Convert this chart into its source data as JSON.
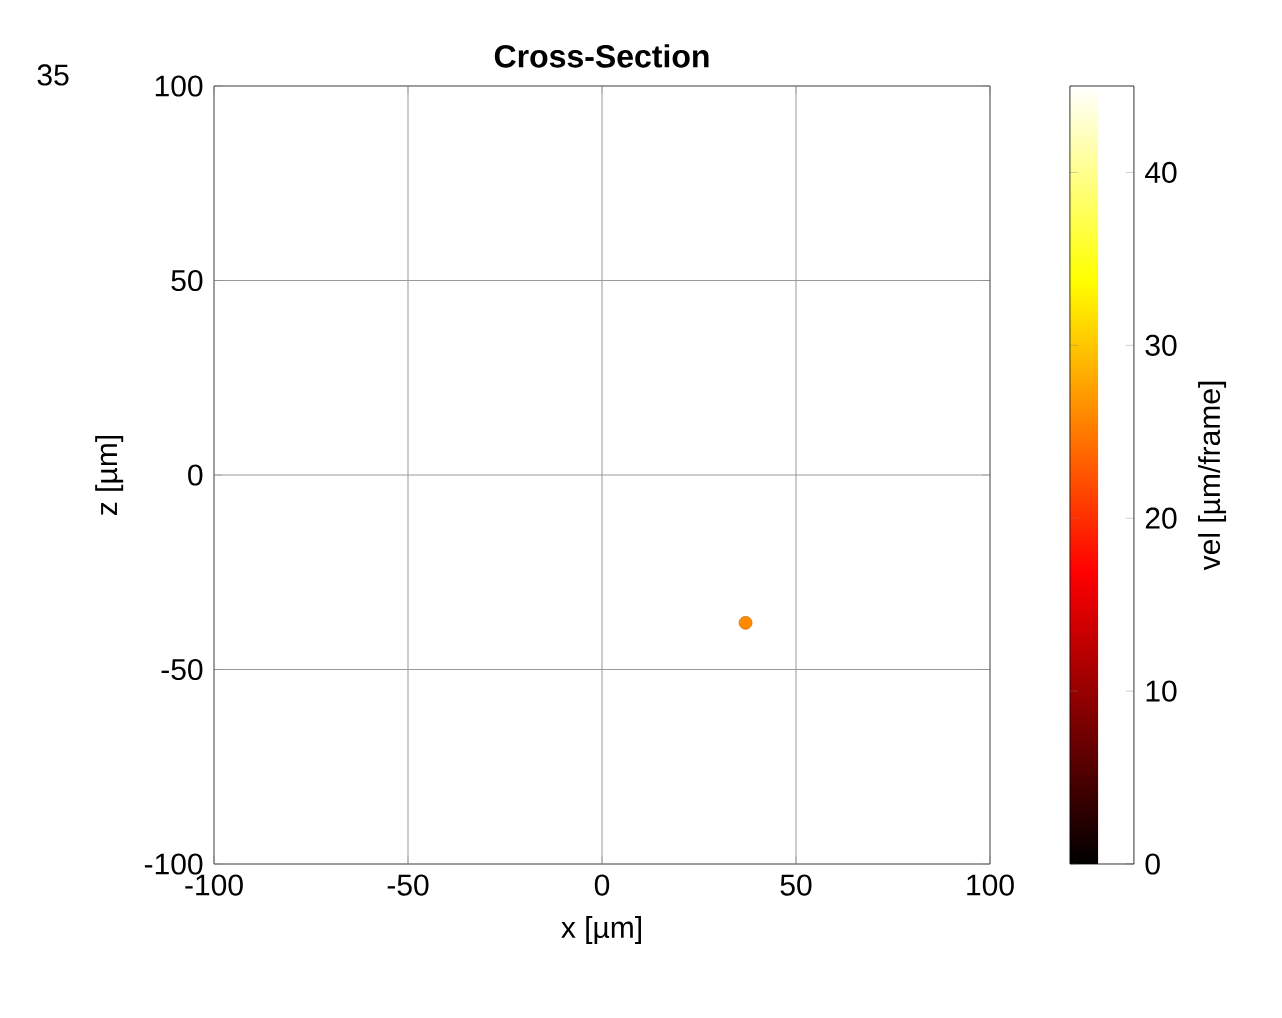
{
  "chart_data": {
    "type": "scatter",
    "title": "Cross-Section",
    "xlabel": "x [µm]",
    "ylabel": "z [µm]",
    "clabel": "vel [µm/frame]",
    "annotations": [
      "35"
    ],
    "x": [
      37
    ],
    "values": [
      -38
    ],
    "cvalues": [
      26
    ],
    "xlim": [
      -100,
      100
    ],
    "ylim": [
      -100,
      100
    ],
    "xticks": [
      -100,
      -50,
      0,
      50,
      100
    ],
    "yticks": [
      -100,
      -50,
      0,
      50,
      100
    ],
    "clim": [
      0,
      45
    ],
    "cticks": [
      0,
      10,
      20,
      30,
      40
    ],
    "grid": true,
    "marker": "circle"
  }
}
